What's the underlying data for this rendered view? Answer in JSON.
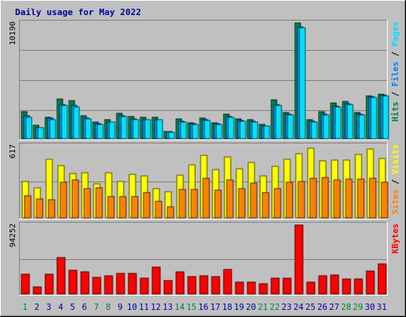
{
  "title": "Daily usage for May 2022",
  "colors": {
    "background": "#c0c0c0",
    "title": "#0000a0",
    "hits": "#008040",
    "files": "#0080ff",
    "pages": "#00e0ff",
    "visits": "#ffff00",
    "sites": "#ff8000",
    "kbytes": "#ff0000",
    "weekend_day": "#008040",
    "weekday": "#0000a0"
  },
  "chart_data": [
    {
      "type": "bar",
      "name": "hits-files-pages",
      "categories": [
        "1",
        "2",
        "3",
        "4",
        "5",
        "6",
        "7",
        "8",
        "9",
        "10",
        "11",
        "12",
        "13",
        "14",
        "15",
        "16",
        "17",
        "18",
        "19",
        "20",
        "21",
        "22",
        "23",
        "24",
        "25",
        "26",
        "27",
        "28",
        "29",
        "30",
        "31"
      ],
      "ymax_label": "10190",
      "ylim": [
        0,
        10190
      ],
      "series": [
        {
          "name": "Hits",
          "values": [
            2350,
            1170,
            1870,
            3520,
            3330,
            2020,
            1480,
            1650,
            2210,
            1940,
            1860,
            1860,
            650,
            1730,
            1400,
            1780,
            1400,
            2170,
            1770,
            1700,
            1270,
            3450,
            2320,
            10190,
            1660,
            2350,
            3170,
            3300,
            2320,
            3800,
            3880
          ]
        },
        {
          "name": "Files",
          "values": [
            2000,
            1000,
            1800,
            3000,
            2950,
            1820,
            1350,
            1500,
            2050,
            1750,
            1700,
            1700,
            600,
            1550,
            1300,
            1650,
            1300,
            1950,
            1620,
            1540,
            1140,
            3020,
            2150,
            9830,
            1520,
            2180,
            2870,
            3080,
            2180,
            3700,
            3820
          ]
        },
        {
          "name": "Pages",
          "values": [
            1900,
            950,
            1700,
            2900,
            2800,
            1750,
            1280,
            1450,
            1950,
            1680,
            1650,
            1650,
            570,
            1480,
            1250,
            1580,
            1250,
            1880,
            1560,
            1500,
            1100,
            2950,
            2080,
            9750,
            1460,
            2100,
            2800,
            3000,
            2120,
            3650,
            3740
          ]
        }
      ],
      "right_labels": [
        "Hits",
        "Files",
        "Pages"
      ]
    },
    {
      "type": "bar",
      "name": "visits-sites",
      "categories": [
        "1",
        "2",
        "3",
        "4",
        "5",
        "6",
        "7",
        "8",
        "9",
        "10",
        "11",
        "12",
        "13",
        "14",
        "15",
        "16",
        "17",
        "18",
        "19",
        "20",
        "21",
        "22",
        "23",
        "24",
        "25",
        "26",
        "27",
        "28",
        "29",
        "30",
        "31"
      ],
      "ymax_label": "617",
      "ylim": [
        0,
        617
      ],
      "series": [
        {
          "name": "Visits",
          "values": [
            315,
            258,
            502,
            445,
            380,
            385,
            294,
            386,
            312,
            374,
            359,
            252,
            227,
            363,
            456,
            537,
            412,
            522,
            423,
            477,
            356,
            440,
            502,
            550,
            594,
            489,
            494,
            493,
            545,
            593,
            509
          ]
        },
        {
          "name": "Sites",
          "values": [
            188,
            164,
            156,
            306,
            327,
            254,
            261,
            184,
            184,
            184,
            216,
            142,
            98,
            241,
            246,
            336,
            234,
            327,
            250,
            296,
            214,
            252,
            308,
            310,
            336,
            346,
            324,
            332,
            332,
            336,
            302
          ]
        }
      ],
      "right_labels": [
        "Sites",
        "Visits"
      ]
    },
    {
      "type": "bar",
      "name": "kbytes",
      "categories": [
        "1",
        "2",
        "3",
        "4",
        "5",
        "6",
        "7",
        "8",
        "9",
        "10",
        "11",
        "12",
        "13",
        "14",
        "15",
        "16",
        "17",
        "18",
        "19",
        "20",
        "21",
        "22",
        "23",
        "24",
        "25",
        "26",
        "27",
        "28",
        "29",
        "30",
        "31"
      ],
      "ymax_label": "94252",
      "ylim": [
        0,
        94252
      ],
      "series": [
        {
          "name": "KBytes",
          "values": [
            27000,
            10000,
            27000,
            50000,
            32000,
            30000,
            23000,
            25000,
            28000,
            28000,
            22000,
            37000,
            18000,
            30000,
            24000,
            25000,
            24000,
            34000,
            16000,
            16000,
            14000,
            22000,
            22000,
            94252,
            16000,
            25000,
            26000,
            21000,
            21000,
            31000,
            41000
          ]
        }
      ],
      "right_labels": [
        "KBytes"
      ]
    }
  ],
  "weekend_days": [
    "1",
    "7",
    "8",
    "14",
    "15",
    "21",
    "22",
    "28",
    "29"
  ]
}
